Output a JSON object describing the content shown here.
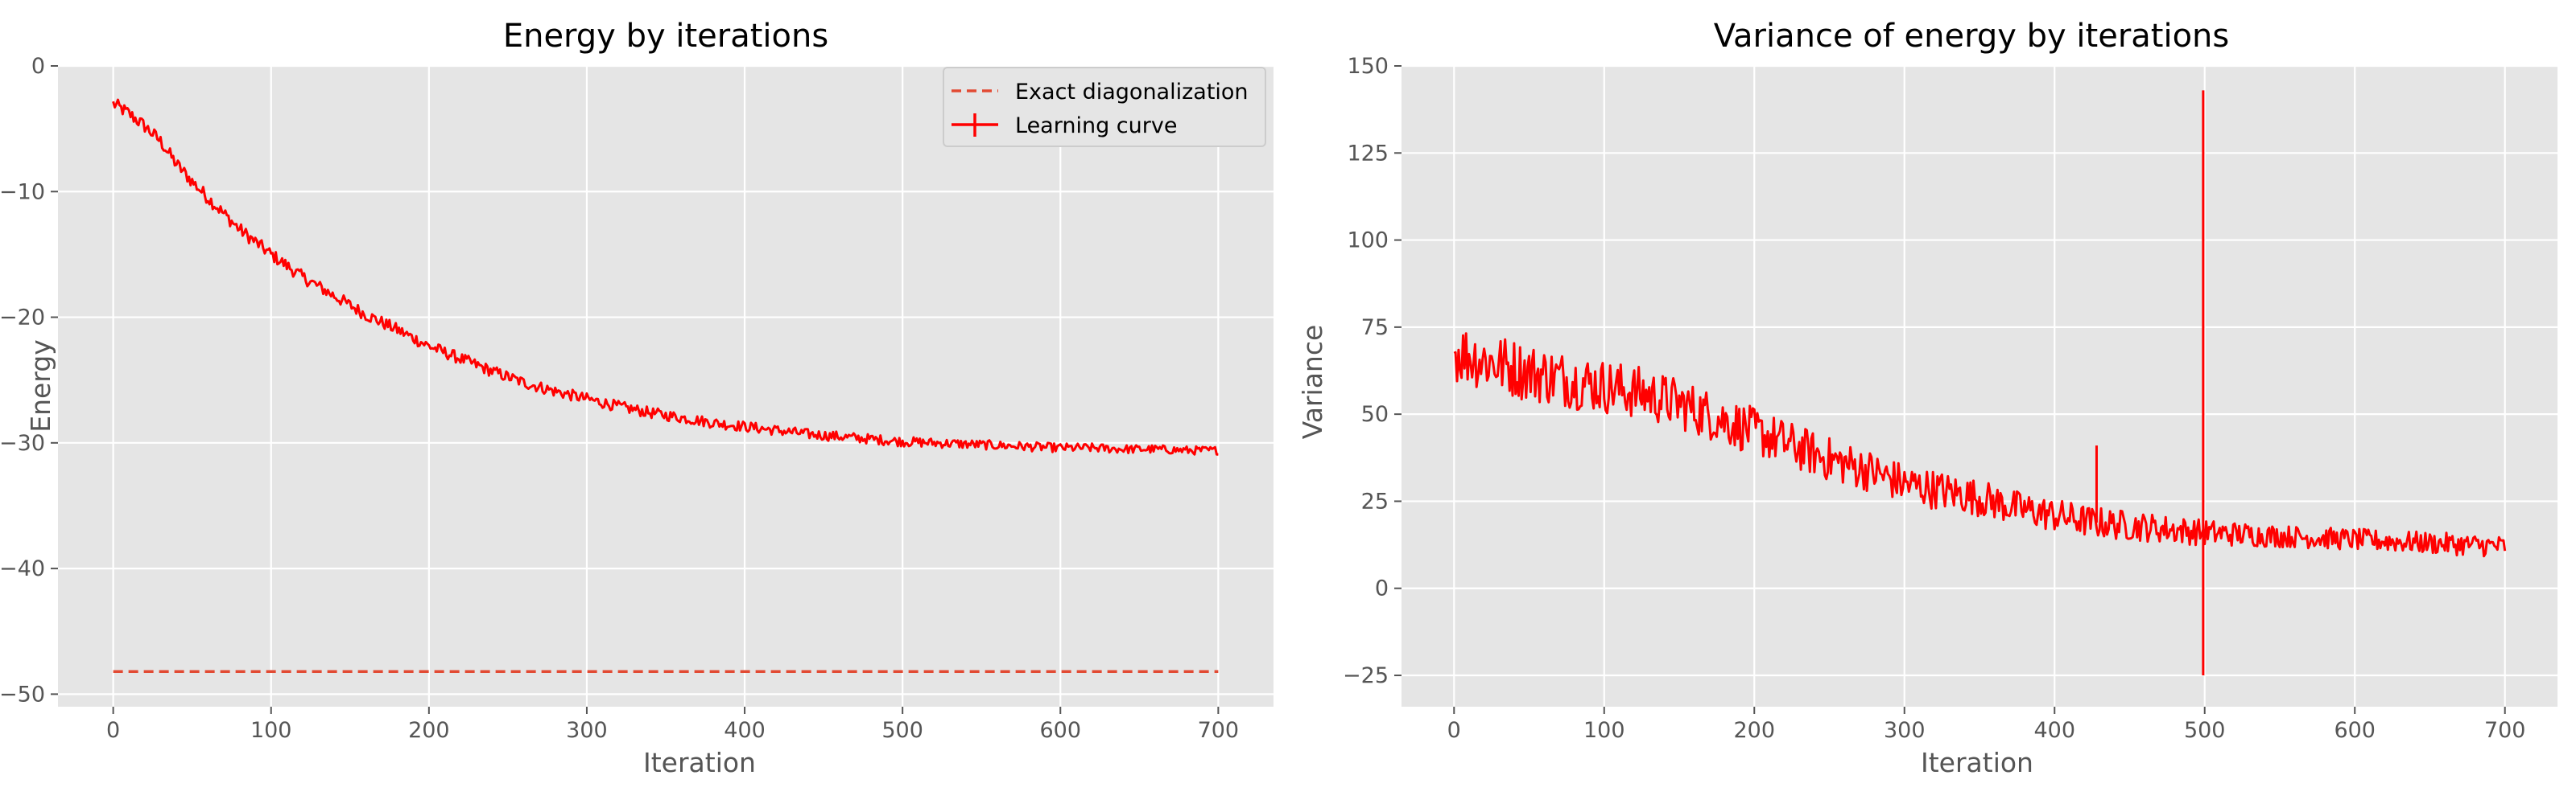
{
  "chart_data": [
    {
      "type": "line",
      "title": "Energy by iterations",
      "xlabel": "Iteration",
      "ylabel": "Energy",
      "xlim": [
        -35,
        735
      ],
      "ylim": [
        -51,
        0
      ],
      "xticks": [
        0,
        100,
        200,
        300,
        400,
        500,
        600,
        700
      ],
      "xtick_labels": [
        "0",
        "100",
        "200",
        "300",
        "400",
        "500",
        "600",
        "700"
      ],
      "yticks": [
        0,
        -10,
        -20,
        -30,
        -40,
        -50
      ],
      "ytick_labels": [
        "0",
        "−10",
        "−20",
        "−30",
        "−40",
        "−50"
      ],
      "grid": true,
      "legend_position": "top-right",
      "series": [
        {
          "name": "Exact diagonalization",
          "style": "dashed",
          "color": "#e24a33",
          "x": [
            0,
            700
          ],
          "y": [
            -48.2,
            -48.2
          ]
        },
        {
          "name": "Learning curve",
          "style": "solid",
          "color": "#ff0000",
          "noise": 0.55,
          "x": [
            0,
            10,
            20,
            30,
            40,
            50,
            60,
            80,
            100,
            120,
            140,
            160,
            180,
            200,
            220,
            240,
            260,
            280,
            300,
            320,
            340,
            360,
            380,
            400,
            420,
            440,
            460,
            480,
            500,
            520,
            540,
            560,
            580,
            600,
            620,
            640,
            660,
            680,
            700
          ],
          "y": [
            -3.0,
            -3.8,
            -4.8,
            -6.0,
            -7.8,
            -9.2,
            -10.5,
            -13.0,
            -15.0,
            -16.8,
            -18.3,
            -19.8,
            -21.0,
            -22.3,
            -23.3,
            -24.3,
            -25.2,
            -25.9,
            -26.5,
            -27.1,
            -27.6,
            -28.0,
            -28.4,
            -28.7,
            -29.0,
            -29.3,
            -29.5,
            -29.7,
            -29.9,
            -30.0,
            -30.1,
            -30.2,
            -30.3,
            -30.4,
            -30.4,
            -30.5,
            -30.5,
            -30.6,
            -30.6
          ]
        }
      ]
    },
    {
      "type": "line",
      "title": "Variance of energy by iterations",
      "xlabel": "Iteration",
      "ylabel": "Variance",
      "xlim": [
        -35,
        735
      ],
      "ylim": [
        -34,
        150
      ],
      "xticks": [
        0,
        100,
        200,
        300,
        400,
        500,
        600,
        700
      ],
      "xtick_labels": [
        "0",
        "100",
        "200",
        "300",
        "400",
        "500",
        "600",
        "700"
      ],
      "yticks": [
        -25,
        0,
        25,
        50,
        75,
        100,
        125,
        150
      ],
      "ytick_labels": [
        "−25",
        "0",
        "25",
        "50",
        "75",
        "100",
        "125",
        "150"
      ],
      "grid": true,
      "series": [
        {
          "style": "solid",
          "color": "#ff0000",
          "noise": 9,
          "x": [
            0,
            25,
            50,
            75,
            100,
            125,
            150,
            175,
            200,
            225,
            250,
            275,
            300,
            325,
            350,
            375,
            400,
            425,
            450,
            475,
            500,
            550,
            600,
            650,
            700
          ],
          "y": [
            68,
            65,
            62,
            60,
            58,
            56,
            53,
            49,
            45,
            41,
            37,
            34,
            30,
            28,
            26,
            23,
            21,
            19,
            18,
            17,
            16,
            15,
            14,
            13,
            12
          ],
          "spikes": [
            {
              "x": 428,
              "y": 41
            },
            {
              "x": 499,
              "y": 143
            },
            {
              "x": 499,
              "y": -25
            }
          ]
        }
      ]
    }
  ]
}
